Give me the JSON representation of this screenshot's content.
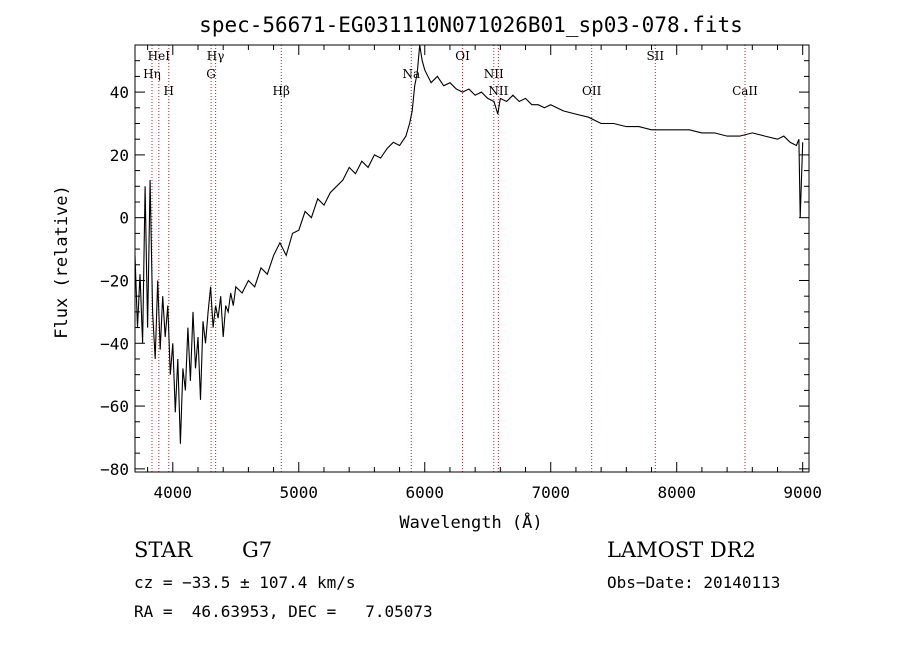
{
  "chart_data": {
    "type": "line",
    "title": "spec-56671-EG031110N071026B01_sp03-078.fits",
    "xlabel": "Wavelength (Å)",
    "ylabel": "Flux (relative)",
    "xlim": [
      3700,
      9050
    ],
    "ylim": [
      -81,
      55
    ],
    "xticks": [
      4000,
      5000,
      6000,
      7000,
      8000,
      9000
    ],
    "yticks": [
      -80,
      -60,
      -40,
      -20,
      0,
      20,
      40
    ],
    "grid": false,
    "series": [
      {
        "points": [
          [
            3700,
            -12
          ],
          [
            3720,
            -35
          ],
          [
            3740,
            -18
          ],
          [
            3760,
            -40
          ],
          [
            3780,
            10
          ],
          [
            3800,
            -35
          ],
          [
            3820,
            12
          ],
          [
            3840,
            -30
          ],
          [
            3860,
            -45
          ],
          [
            3880,
            -20
          ],
          [
            3900,
            -42
          ],
          [
            3920,
            -25
          ],
          [
            3940,
            -38
          ],
          [
            3960,
            -28
          ],
          [
            3980,
            -50
          ],
          [
            4000,
            -40
          ],
          [
            4020,
            -62
          ],
          [
            4040,
            -45
          ],
          [
            4060,
            -72
          ],
          [
            4080,
            -48
          ],
          [
            4100,
            -55
          ],
          [
            4120,
            -35
          ],
          [
            4140,
            -52
          ],
          [
            4160,
            -30
          ],
          [
            4180,
            -48
          ],
          [
            4200,
            -38
          ],
          [
            4220,
            -58
          ],
          [
            4240,
            -33
          ],
          [
            4260,
            -40
          ],
          [
            4280,
            -30
          ],
          [
            4300,
            -22
          ],
          [
            4320,
            -35
          ],
          [
            4340,
            -28
          ],
          [
            4360,
            -32
          ],
          [
            4380,
            -25
          ],
          [
            4400,
            -38
          ],
          [
            4420,
            -28
          ],
          [
            4440,
            -30
          ],
          [
            4460,
            -24
          ],
          [
            4480,
            -28
          ],
          [
            4500,
            -22
          ],
          [
            4550,
            -24
          ],
          [
            4600,
            -20
          ],
          [
            4650,
            -22
          ],
          [
            4700,
            -16
          ],
          [
            4750,
            -18
          ],
          [
            4800,
            -12
          ],
          [
            4850,
            -8
          ],
          [
            4900,
            -12
          ],
          [
            4950,
            -5
          ],
          [
            5000,
            -4
          ],
          [
            5050,
            2
          ],
          [
            5100,
            0
          ],
          [
            5150,
            6
          ],
          [
            5200,
            4
          ],
          [
            5250,
            8
          ],
          [
            5300,
            10
          ],
          [
            5350,
            12
          ],
          [
            5400,
            16
          ],
          [
            5450,
            14
          ],
          [
            5500,
            18
          ],
          [
            5550,
            16
          ],
          [
            5600,
            20
          ],
          [
            5650,
            19
          ],
          [
            5700,
            22
          ],
          [
            5750,
            24
          ],
          [
            5800,
            23
          ],
          [
            5850,
            26
          ],
          [
            5880,
            30
          ],
          [
            5900,
            34
          ],
          [
            5920,
            42
          ],
          [
            5940,
            46
          ],
          [
            5960,
            55
          ],
          [
            5980,
            50
          ],
          [
            6000,
            47
          ],
          [
            6050,
            43
          ],
          [
            6100,
            45
          ],
          [
            6150,
            42
          ],
          [
            6200,
            43
          ],
          [
            6250,
            41
          ],
          [
            6300,
            40
          ],
          [
            6350,
            41
          ],
          [
            6400,
            39
          ],
          [
            6450,
            40
          ],
          [
            6500,
            38
          ],
          [
            6550,
            37
          ],
          [
            6580,
            33
          ],
          [
            6600,
            38
          ],
          [
            6650,
            37
          ],
          [
            6700,
            39
          ],
          [
            6750,
            37
          ],
          [
            6800,
            38
          ],
          [
            6850,
            36
          ],
          [
            6900,
            36
          ],
          [
            6950,
            35
          ],
          [
            7000,
            36
          ],
          [
            7100,
            34
          ],
          [
            7200,
            33
          ],
          [
            7300,
            32
          ],
          [
            7400,
            30
          ],
          [
            7500,
            30
          ],
          [
            7600,
            29
          ],
          [
            7700,
            29
          ],
          [
            7800,
            28
          ],
          [
            7900,
            28
          ],
          [
            8000,
            28
          ],
          [
            8100,
            28
          ],
          [
            8200,
            27
          ],
          [
            8300,
            27
          ],
          [
            8400,
            26
          ],
          [
            8500,
            26
          ],
          [
            8600,
            27
          ],
          [
            8700,
            26
          ],
          [
            8800,
            25
          ],
          [
            8850,
            26
          ],
          [
            8900,
            24
          ],
          [
            8950,
            23
          ],
          [
            8970,
            25
          ],
          [
            8980,
            0
          ],
          [
            9000,
            24
          ]
        ]
      }
    ],
    "lines": [
      {
        "label": "HeI",
        "x": 3889,
        "row": 0
      },
      {
        "label": "Hη",
        "x": 3835,
        "row": 1
      },
      {
        "label": "H",
        "x": 3968,
        "row": 2
      },
      {
        "label": "Hγ",
        "x": 4340,
        "row": 0
      },
      {
        "label": "G",
        "x": 4304,
        "row": 1
      },
      {
        "label": "Hβ",
        "x": 4861,
        "row": 2
      },
      {
        "label": "Na",
        "x": 5893,
        "row": 1
      },
      {
        "label": "OI",
        "x": 6300,
        "row": 0
      },
      {
        "label": "NII",
        "x": 6548,
        "row": 1
      },
      {
        "label": "NII",
        "x": 6584,
        "row": 2
      },
      {
        "label": "OII",
        "x": 7325,
        "row": 2
      },
      {
        "label": "SII",
        "x": 7830,
        "row": 0
      },
      {
        "label": "CaII",
        "x": 8542,
        "row": 2
      }
    ],
    "colors": {
      "spectrum": "#000000",
      "line_marker": "#b22222",
      "frame": "#000000"
    }
  },
  "info": {
    "object_class": "STAR",
    "subclass": "G7",
    "survey": "LAMOST DR2",
    "cz": "cz = −33.5 ± 107.4 km/s",
    "obs_date": "Obs−Date: 20140113",
    "coords": "RA =  46.63953, DEC =   7.05073"
  }
}
